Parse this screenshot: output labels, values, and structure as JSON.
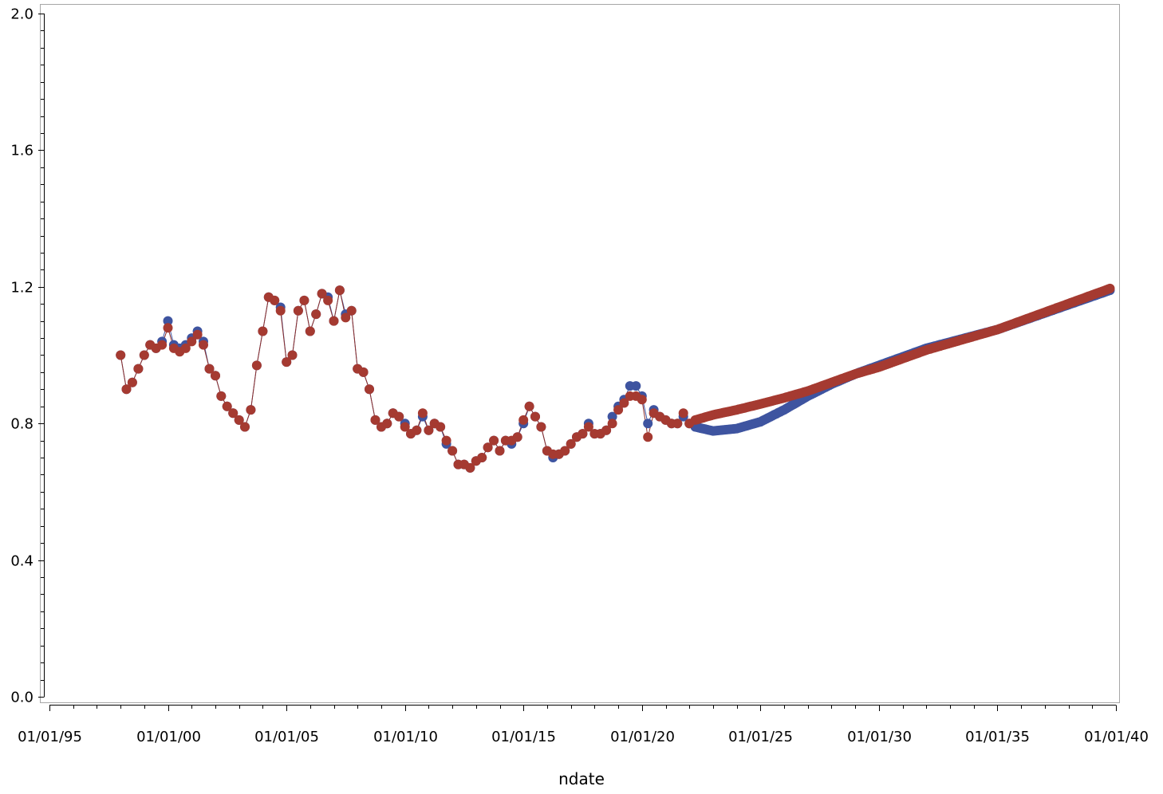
{
  "chart_data": {
    "type": "line",
    "title": "",
    "xlabel": "ndate",
    "ylabel": "",
    "x_axis_type": "date",
    "xlim": [
      "1995-01-01",
      "2040-01-01"
    ],
    "ylim": [
      0.0,
      2.0
    ],
    "x_ticks": [
      "1995-01-01",
      "2000-01-01",
      "2005-01-01",
      "2010-01-01",
      "2015-01-01",
      "2020-01-01",
      "2025-01-01",
      "2030-01-01",
      "2035-01-01",
      "2040-01-01"
    ],
    "x_tick_labels": [
      "01/01/95",
      "01/01/00",
      "01/01/05",
      "01/01/10",
      "01/01/15",
      "01/01/20",
      "01/01/25",
      "01/01/30",
      "01/01/35",
      "01/01/40"
    ],
    "y_ticks": [
      0.0,
      0.4,
      0.8,
      1.2,
      1.6,
      2.0
    ],
    "y_tick_labels": [
      "0.0",
      "0.4",
      "0.8",
      "1.2",
      "1.6",
      "2.0"
    ],
    "grid": false,
    "legend": "none",
    "marker": "filled circle",
    "colors": {
      "series_blue": "#3e54a0",
      "series_red": "#a53a31",
      "series_red_line": "#8c2e2a",
      "axis": "#000000",
      "frame": "#a6a6a6"
    },
    "historical": {
      "x": [
        "1998-01-01",
        "1998-04-01",
        "1998-07-01",
        "1998-10-01",
        "1999-01-01",
        "1999-04-01",
        "1999-07-01",
        "1999-10-01",
        "2000-01-01",
        "2000-04-01",
        "2000-07-01",
        "2000-10-01",
        "2001-01-01",
        "2001-04-01",
        "2001-07-01",
        "2001-10-01",
        "2002-01-01",
        "2002-04-01",
        "2002-07-01",
        "2002-10-01",
        "2003-01-01",
        "2003-04-01",
        "2003-07-01",
        "2003-10-01",
        "2004-01-01",
        "2004-04-01",
        "2004-07-01",
        "2004-10-01",
        "2005-01-01",
        "2005-04-01",
        "2005-07-01",
        "2005-10-01",
        "2006-01-01",
        "2006-04-01",
        "2006-07-01",
        "2006-10-01",
        "2007-01-01",
        "2007-04-01",
        "2007-07-01",
        "2007-10-01",
        "2008-01-01",
        "2008-04-01",
        "2008-07-01",
        "2008-10-01",
        "2009-01-01",
        "2009-04-01",
        "2009-07-01",
        "2009-10-01",
        "2010-01-01",
        "2010-04-01",
        "2010-07-01",
        "2010-10-01",
        "2011-01-01",
        "2011-04-01",
        "2011-07-01",
        "2011-10-01",
        "2012-01-01",
        "2012-04-01",
        "2012-07-01",
        "2012-10-01",
        "2013-01-01",
        "2013-04-01",
        "2013-07-01",
        "2013-10-01",
        "2014-01-01",
        "2014-04-01",
        "2014-07-01",
        "2014-10-01",
        "2015-01-01",
        "2015-04-01",
        "2015-07-01",
        "2015-10-01",
        "2016-01-01",
        "2016-04-01",
        "2016-07-01",
        "2016-10-01",
        "2017-01-01",
        "2017-04-01",
        "2017-07-01",
        "2017-10-01",
        "2018-01-01",
        "2018-04-01",
        "2018-07-01",
        "2018-10-01",
        "2019-01-01",
        "2019-04-01",
        "2019-07-01",
        "2019-10-01",
        "2020-01-01",
        "2020-04-01",
        "2020-07-01",
        "2020-10-01",
        "2021-01-01",
        "2021-04-01",
        "2021-07-01",
        "2021-10-01",
        "2022-01-01"
      ],
      "blue": [
        1.0,
        0.9,
        0.92,
        0.96,
        1.0,
        1.03,
        1.02,
        1.04,
        1.1,
        1.03,
        1.02,
        1.03,
        1.05,
        1.07,
        1.04,
        0.96,
        0.94,
        0.88,
        0.85,
        0.83,
        0.81,
        0.79,
        0.84,
        0.97,
        1.07,
        1.17,
        1.16,
        1.14,
        0.98,
        1.0,
        1.13,
        1.16,
        1.07,
        1.12,
        1.18,
        1.17,
        1.1,
        1.19,
        1.12,
        1.13,
        0.96,
        0.95,
        0.9,
        0.81,
        0.79,
        0.8,
        0.83,
        0.82,
        0.8,
        0.77,
        0.78,
        0.82,
        0.78,
        0.8,
        0.79,
        0.74,
        0.72,
        0.68,
        0.68,
        0.67,
        0.69,
        0.7,
        0.73,
        0.75,
        0.72,
        0.75,
        0.74,
        0.76,
        0.8,
        0.85,
        0.82,
        0.79,
        0.72,
        0.7,
        0.71,
        0.72,
        0.74,
        0.76,
        0.77,
        0.8,
        0.77,
        0.77,
        0.78,
        0.82,
        0.85,
        0.87,
        0.91,
        0.91,
        0.88,
        0.8,
        0.84,
        0.82,
        0.81,
        0.8,
        0.8,
        0.82,
        0.8
      ],
      "red": [
        1.0,
        0.9,
        0.92,
        0.96,
        1.0,
        1.03,
        1.02,
        1.03,
        1.08,
        1.02,
        1.01,
        1.02,
        1.04,
        1.06,
        1.03,
        0.96,
        0.94,
        0.88,
        0.85,
        0.83,
        0.81,
        0.79,
        0.84,
        0.97,
        1.07,
        1.17,
        1.16,
        1.13,
        0.98,
        1.0,
        1.13,
        1.16,
        1.07,
        1.12,
        1.18,
        1.16,
        1.1,
        1.19,
        1.11,
        1.13,
        0.96,
        0.95,
        0.9,
        0.81,
        0.79,
        0.8,
        0.83,
        0.82,
        0.79,
        0.77,
        0.78,
        0.83,
        0.78,
        0.8,
        0.79,
        0.75,
        0.72,
        0.68,
        0.68,
        0.67,
        0.69,
        0.7,
        0.73,
        0.75,
        0.72,
        0.75,
        0.75,
        0.76,
        0.81,
        0.85,
        0.82,
        0.79,
        0.72,
        0.71,
        0.71,
        0.72,
        0.74,
        0.76,
        0.77,
        0.79,
        0.77,
        0.77,
        0.78,
        0.8,
        0.84,
        0.86,
        0.88,
        0.88,
        0.87,
        0.76,
        0.83,
        0.82,
        0.81,
        0.8,
        0.8,
        0.83,
        0.8
      ]
    },
    "projection": {
      "start": "2022-04-01",
      "end": "2039-10-01",
      "blue": [
        [
          "2022-04-01",
          0.79
        ],
        [
          "2023-01-01",
          0.778
        ],
        [
          "2024-01-01",
          0.785
        ],
        [
          "2025-01-01",
          0.805
        ],
        [
          "2026-01-01",
          0.84
        ],
        [
          "2027-01-01",
          0.88
        ],
        [
          "2028-01-01",
          0.915
        ],
        [
          "2029-01-01",
          0.945
        ],
        [
          "2030-01-01",
          0.97
        ],
        [
          "2032-01-01",
          1.02
        ],
        [
          "2035-01-01",
          1.075
        ],
        [
          "2039-10-01",
          1.19
        ]
      ],
      "red": [
        [
          "2022-04-01",
          0.81
        ],
        [
          "2023-01-01",
          0.825
        ],
        [
          "2024-01-01",
          0.84
        ],
        [
          "2025-01-01",
          0.857
        ],
        [
          "2026-01-01",
          0.875
        ],
        [
          "2027-01-01",
          0.895
        ],
        [
          "2028-01-01",
          0.92
        ],
        [
          "2029-01-01",
          0.945
        ],
        [
          "2030-01-01",
          0.965
        ],
        [
          "2032-01-01",
          1.015
        ],
        [
          "2035-01-01",
          1.075
        ],
        [
          "2039-10-01",
          1.195
        ]
      ]
    }
  }
}
